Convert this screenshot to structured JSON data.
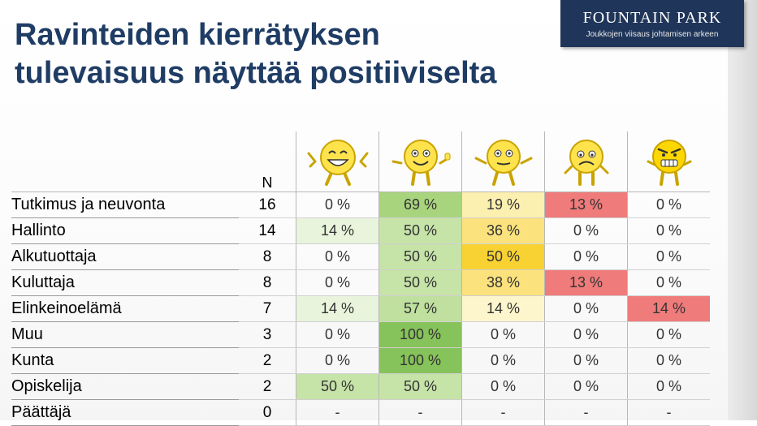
{
  "logo": {
    "name_first": "Fountain",
    "name_second": "Park",
    "tagline": "Joukkojen viisaus johtamisen arkeen"
  },
  "title": {
    "line1": "Ravinteiden kierrätyksen",
    "line2": "tulevaisuus näyttää positiiviselta"
  },
  "table": {
    "n_header": "N",
    "face_columns": [
      {
        "icon": "very-happy-face-icon"
      },
      {
        "icon": "happy-face-icon"
      },
      {
        "icon": "neutral-face-icon"
      },
      {
        "icon": "unhappy-face-icon"
      },
      {
        "icon": "angry-face-icon"
      }
    ],
    "rows": [
      {
        "label": "Tutkimus ja neuvonta",
        "n": "16",
        "cells": [
          {
            "text": "0 %",
            "color": ""
          },
          {
            "text": "69 %",
            "color": "#a9d47e"
          },
          {
            "text": "19 %",
            "color": "#fcf0b0"
          },
          {
            "text": "13 %",
            "color": "#f07b7b"
          },
          {
            "text": "0 %",
            "color": ""
          }
        ]
      },
      {
        "label": "Hallinto",
        "n": "14",
        "cells": [
          {
            "text": "14 %",
            "color": "#e8f4dc"
          },
          {
            "text": "50 %",
            "color": "#c6e3a8"
          },
          {
            "text": "36 %",
            "color": "#fbe27c"
          },
          {
            "text": "0 %",
            "color": ""
          },
          {
            "text": "0 %",
            "color": ""
          }
        ]
      },
      {
        "label": "Alkutuottaja",
        "n": "8",
        "cells": [
          {
            "text": "0 %",
            "color": ""
          },
          {
            "text": "50 %",
            "color": "#c6e3a8"
          },
          {
            "text": "50 %",
            "color": "#f7d232"
          },
          {
            "text": "0 %",
            "color": ""
          },
          {
            "text": "0 %",
            "color": ""
          }
        ]
      },
      {
        "label": "Kuluttaja",
        "n": "8",
        "cells": [
          {
            "text": "0 %",
            "color": ""
          },
          {
            "text": "50 %",
            "color": "#c6e3a8"
          },
          {
            "text": "38 %",
            "color": "#fbe27c"
          },
          {
            "text": "13 %",
            "color": "#f07b7b"
          },
          {
            "text": "0 %",
            "color": ""
          }
        ]
      },
      {
        "label": "Elinkeinoelämä",
        "n": "7",
        "cells": [
          {
            "text": "14 %",
            "color": "#e8f4dc"
          },
          {
            "text": "57 %",
            "color": "#bfe09e"
          },
          {
            "text": "14 %",
            "color": "#fdf6cc"
          },
          {
            "text": "0 %",
            "color": ""
          },
          {
            "text": "14 %",
            "color": "#f07b7b"
          }
        ]
      },
      {
        "label": "Muu",
        "n": "3",
        "cells": [
          {
            "text": "0 %",
            "color": ""
          },
          {
            "text": "100 %",
            "color": "#86c35a"
          },
          {
            "text": "0 %",
            "color": ""
          },
          {
            "text": "0 %",
            "color": ""
          },
          {
            "text": "0 %",
            "color": ""
          }
        ]
      },
      {
        "label": "Kunta",
        "n": "2",
        "cells": [
          {
            "text": "0 %",
            "color": ""
          },
          {
            "text": "100 %",
            "color": "#86c35a"
          },
          {
            "text": "0 %",
            "color": ""
          },
          {
            "text": "0 %",
            "color": ""
          },
          {
            "text": "0 %",
            "color": ""
          }
        ]
      },
      {
        "label": "Opiskelija",
        "n": "2",
        "cells": [
          {
            "text": "50 %",
            "color": "#c6e3a8"
          },
          {
            "text": "50 %",
            "color": "#c6e3a8"
          },
          {
            "text": "0 %",
            "color": ""
          },
          {
            "text": "0 %",
            "color": ""
          },
          {
            "text": "0 %",
            "color": ""
          }
        ]
      },
      {
        "label": "Päättäjä",
        "n": "0",
        "cells": [
          {
            "text": "-",
            "color": ""
          },
          {
            "text": "-",
            "color": ""
          },
          {
            "text": "-",
            "color": ""
          },
          {
            "text": "-",
            "color": ""
          },
          {
            "text": "-",
            "color": ""
          }
        ]
      }
    ]
  }
}
